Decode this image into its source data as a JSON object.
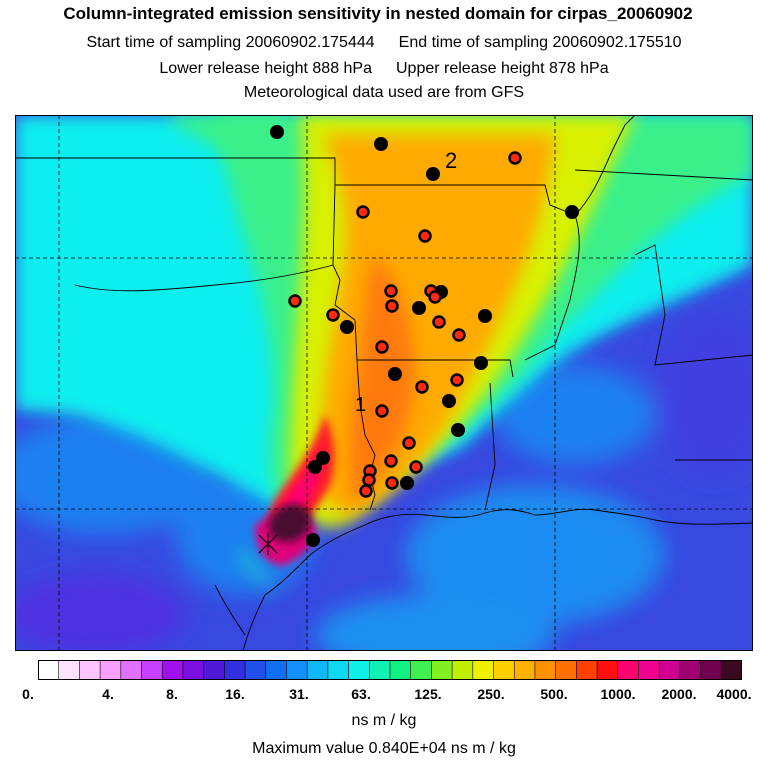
{
  "header": {
    "title": "Column-integrated emission sensitivity in nested domain for cirpas_20060902",
    "start_time": "Start time of sampling 20060902.175444",
    "end_time": "End time of sampling 20060902.175510",
    "lower_release": "Lower release height  888 hPa",
    "upper_release": "Upper release height  878 hPa",
    "met_data": "Meteorological data used are from GFS"
  },
  "map": {
    "labels": [
      {
        "text": "1"
      },
      {
        "text": "2"
      }
    ],
    "colors": {
      "background": "#3f3fe0",
      "cyan": "#10eeee",
      "green": "#3af08a",
      "yellow": "#d8f000",
      "orange": "#ffaa00",
      "red": "#ff1a2a",
      "magenta": "#ff0070",
      "dark": "#4a0e30",
      "black_dot": "#000000",
      "red_dot": "#ff2a10"
    }
  },
  "colorbar": {
    "colors": [
      "#ffffff",
      "#ffe2ff",
      "#ffc4ff",
      "#f8a0ff",
      "#e070ff",
      "#c840ff",
      "#a010e8",
      "#7a10e0",
      "#5018d8",
      "#3030e0",
      "#2050e8",
      "#1070f0",
      "#1090f8",
      "#10b8f8",
      "#10d8f0",
      "#10f0e8",
      "#10f0b0",
      "#10f080",
      "#40f050",
      "#80f020",
      "#c0f000",
      "#f0f000",
      "#ffd000",
      "#ffb000",
      "#ff9000",
      "#ff7000",
      "#ff4000",
      "#ff1010",
      "#ff0070",
      "#f00090",
      "#d00090",
      "#a00070",
      "#700050",
      "#3a0a20"
    ],
    "tick_labels": [
      "0.",
      "4.",
      "8.",
      "16.",
      "31.",
      "63.",
      "125.",
      "250.",
      "500.",
      "1000.",
      "2000.",
      "4000."
    ],
    "unit": "ns m / kg"
  },
  "footer": {
    "max_value": "Maximum value  0.840E+04 ns m / kg"
  }
}
